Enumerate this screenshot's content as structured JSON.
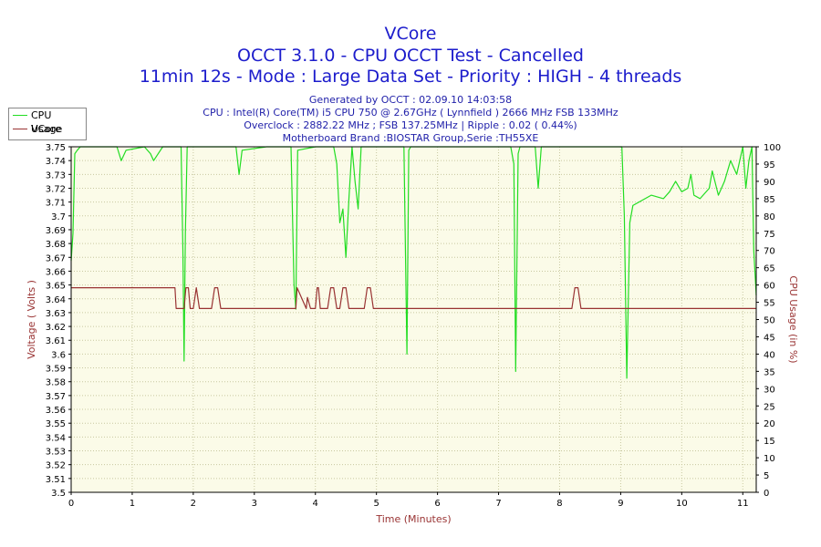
{
  "header": {
    "title": "VCore",
    "subtitle1": "OCCT 3.1.0 - CPU OCCT Test - Cancelled",
    "subtitle2": "11min 12s - Mode : Large Data Set - Priority : HIGH - 4 threads"
  },
  "info": {
    "line1": "Generated by OCCT : 02.09.10 14:03:58",
    "line2": "CPU : Intel(R) Core(TM) i5 CPU 750 @ 2.67GHz ( Lynnfield ) 2666 MHz FSB 133MHz",
    "line3": "Overclock : 2882.22 MHz ; FSB 137.25MHz | Ripple : 0.02 ( 0.44%)",
    "line4": "Motherboard Brand :BIOSTAR Group,Serie :TH55XE"
  },
  "chart_data": {
    "type": "line",
    "xlabel": "Time (Minutes)",
    "ylabel": "Voltage ( Volts )",
    "y2label": "CPU Usage (in %)",
    "xlim": [
      0,
      11.22
    ],
    "ylim": [
      3.5,
      3.75
    ],
    "y2lim": [
      0,
      100
    ],
    "x_ticks": [
      0,
      1,
      2,
      3,
      4,
      5,
      6,
      7,
      8,
      9,
      10,
      11
    ],
    "y_ticks": [
      3.5,
      3.51,
      3.52,
      3.53,
      3.54,
      3.55,
      3.56,
      3.57,
      3.58,
      3.59,
      3.6,
      3.61,
      3.62,
      3.63,
      3.64,
      3.65,
      3.66,
      3.67,
      3.68,
      3.69,
      3.7,
      3.71,
      3.72,
      3.73,
      3.74,
      3.75
    ],
    "y2_ticks": [
      0,
      5,
      10,
      15,
      20,
      25,
      30,
      35,
      40,
      45,
      50,
      55,
      60,
      65,
      70,
      75,
      80,
      85,
      90,
      95,
      100
    ],
    "grid": true,
    "legend_position": "top-left",
    "colors": {
      "cpu": "#22dd22",
      "vcore": "#993333",
      "plot_bg": "#fbfbe8",
      "grid": "#c8c8a0"
    },
    "series": [
      {
        "name": "CPU Usage",
        "axis": "right",
        "x": [
          0.0,
          0.03,
          0.06,
          0.1,
          0.15,
          0.5,
          0.75,
          0.82,
          0.9,
          1.2,
          1.3,
          1.35,
          1.5,
          1.8,
          1.83,
          1.85,
          1.87,
          1.9,
          2.2,
          2.5,
          2.7,
          2.75,
          2.8,
          3.2,
          3.6,
          3.65,
          3.68,
          3.71,
          4.0,
          4.3,
          4.35,
          4.4,
          4.45,
          4.5,
          4.55,
          4.6,
          4.65,
          4.7,
          4.75,
          5.0,
          5.2,
          5.45,
          5.5,
          5.53,
          5.56,
          6.0,
          7.2,
          7.25,
          7.28,
          7.32,
          7.35,
          7.6,
          7.65,
          7.7,
          7.8,
          8.3,
          8.6,
          9.02,
          9.06,
          9.1,
          9.15,
          9.2,
          9.3,
          9.5,
          9.7,
          9.8,
          9.9,
          10.0,
          10.1,
          10.15,
          10.2,
          10.3,
          10.45,
          10.5,
          10.6,
          10.7,
          10.8,
          10.9,
          11.0,
          11.05,
          11.1,
          11.15,
          11.18,
          11.22
        ],
        "y": [
          67,
          75,
          98,
          99,
          100,
          100,
          100,
          96,
          99,
          100,
          98,
          96,
          100,
          100,
          70,
          38,
          75,
          100,
          100,
          100,
          100,
          92,
          99,
          100,
          100,
          60,
          53,
          99,
          100,
          100,
          95,
          78,
          82,
          68,
          85,
          100,
          90,
          82,
          100,
          100,
          100,
          100,
          40,
          99,
          100,
          100,
          100,
          95,
          35,
          98,
          100,
          100,
          88,
          100,
          100,
          100,
          100,
          100,
          80,
          33,
          78,
          83,
          84,
          86,
          85,
          87,
          90,
          87,
          88,
          92,
          86,
          85,
          88,
          93,
          86,
          90,
          96,
          92,
          100,
          88,
          96,
          100,
          70,
          57
        ]
      },
      {
        "name": "VCore",
        "axis": "left",
        "x": [
          0.0,
          1.7,
          1.72,
          1.85,
          1.88,
          1.92,
          1.95,
          2.0,
          2.05,
          2.1,
          2.12,
          2.15,
          2.3,
          2.35,
          2.4,
          2.45,
          2.5,
          3.68,
          3.7,
          3.85,
          3.87,
          3.92,
          4.0,
          4.03,
          4.05,
          4.08,
          4.2,
          4.25,
          4.3,
          4.35,
          4.4,
          4.45,
          4.5,
          4.55,
          4.6,
          4.65,
          4.8,
          4.85,
          4.9,
          4.95,
          5.0,
          5.05,
          8.2,
          8.25,
          8.3,
          8.35,
          11.22
        ],
        "y": [
          3.648,
          3.648,
          3.633,
          3.633,
          3.648,
          3.648,
          3.633,
          3.633,
          3.648,
          3.633,
          3.633,
          3.633,
          3.633,
          3.648,
          3.648,
          3.633,
          3.633,
          3.633,
          3.648,
          3.633,
          3.641,
          3.633,
          3.633,
          3.648,
          3.648,
          3.633,
          3.633,
          3.648,
          3.648,
          3.633,
          3.633,
          3.648,
          3.648,
          3.633,
          3.633,
          3.633,
          3.633,
          3.648,
          3.648,
          3.633,
          3.633,
          3.633,
          3.633,
          3.648,
          3.648,
          3.633,
          3.633
        ]
      }
    ]
  }
}
